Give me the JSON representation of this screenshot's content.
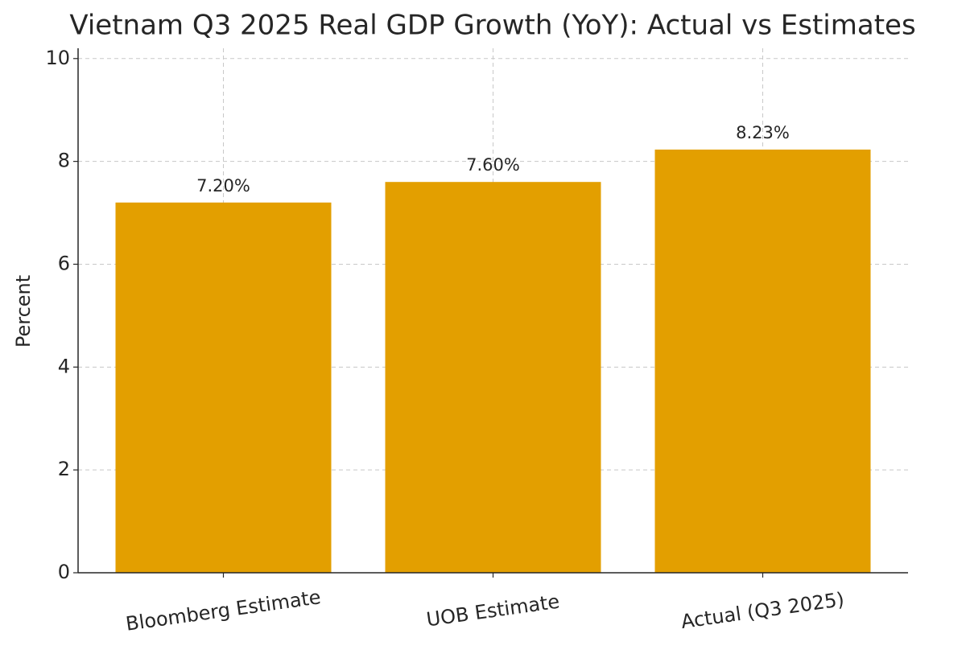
{
  "chart_data": {
    "type": "bar",
    "title": "Vietnam Q3 2025 Real GDP Growth (YoY): Actual vs Estimates",
    "y_label": "Percent",
    "categories": [
      "Bloomberg Estimate",
      "UOB Estimate",
      "Actual (Q3 2025)"
    ],
    "values": [
      7.2,
      7.6,
      8.23
    ],
    "value_labels": [
      "7.20%",
      "7.60%",
      "8.23%"
    ],
    "color": "#e39f00",
    "ylim": [
      0,
      10.2
    ],
    "yticks": [
      0,
      2,
      4,
      6,
      8,
      10
    ],
    "grid": true
  }
}
